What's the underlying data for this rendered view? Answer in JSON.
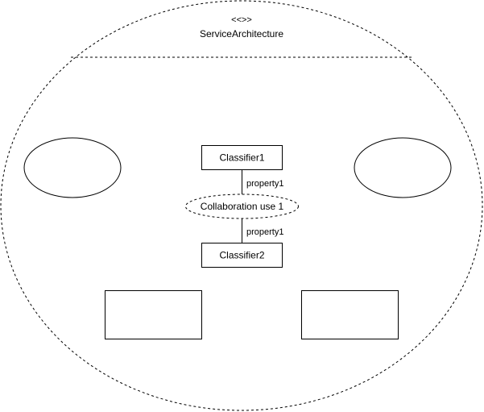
{
  "diagram": {
    "stereotype": "<<>>",
    "name": "ServiceArchitecture",
    "classifiers": [
      {
        "label": "Classifier1"
      },
      {
        "label": "Classifier2"
      }
    ],
    "collaboration_use": {
      "label": "Collaboration use 1"
    },
    "roles": [
      {
        "label": "property1"
      },
      {
        "label": "property1"
      }
    ]
  }
}
